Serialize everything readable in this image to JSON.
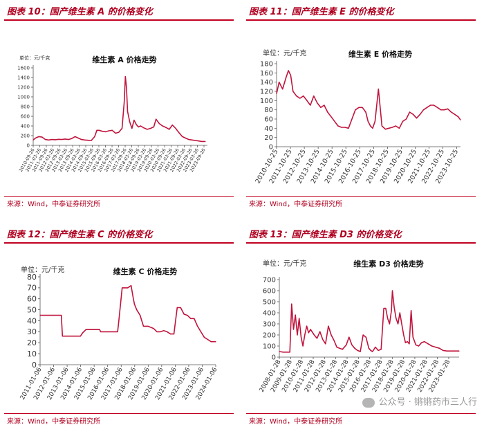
{
  "panels": [
    {
      "title": "图表 10：国产维生素 A 的价格变化",
      "source": "来源：Wind，中泰证券研究所"
    },
    {
      "title": "图表 11：国产维生素 E 的价格变化",
      "source": "来源：Wind，中泰证券研究所"
    },
    {
      "title": "图表 12：国产维生素 C 的价格变化",
      "source": "来源：Wind，中泰证券研究所"
    },
    {
      "title": "图表 13：国产维生素 D3 的价格变化",
      "source": "来源：Wind，中泰证券研究所"
    }
  ],
  "watermark": "公众号 · 锵锵药市三人行",
  "colors": {
    "line": "#c0143c",
    "accent": "#c00020"
  },
  "chart_data": [
    {
      "type": "line",
      "title": "维生素 A 价格走势",
      "unit_label": "单位：元/千克",
      "ylim": [
        0,
        1600
      ],
      "yticks": [
        0,
        200,
        400,
        600,
        800,
        1000,
        1200,
        1400,
        1600
      ],
      "xlim": [
        "2010-09-26",
        "2023-12-31"
      ],
      "xticks": [
        "2010-09-26",
        "2011-03-26",
        "2011-09-26",
        "2012-03-26",
        "2012-09-26",
        "2013-03-26",
        "2013-09-26",
        "2014-03-26",
        "2014-09-26",
        "2015-03-26",
        "2015-09-26",
        "2016-03-26",
        "2016-09-26",
        "2017-03-26",
        "2017-09-26",
        "2018-03-26",
        "2018-09-26",
        "2019-03-26",
        "2019-09-26",
        "2020-03-26",
        "2020-09-26",
        "2021-03-26",
        "2021-09-26",
        "2022-03-26",
        "2022-09-26",
        "2023-03-26",
        "2023-09-26"
      ],
      "grid": false,
      "series": [
        {
          "x": [
            "2010-09-26",
            "2010-12-01",
            "2011-03-01",
            "2011-06-01",
            "2011-09-01",
            "2011-12-01",
            "2012-03-01",
            "2012-06-01",
            "2012-09-01",
            "2012-12-01",
            "2013-03-01",
            "2013-06-01",
            "2013-09-01",
            "2013-12-01",
            "2014-03-01",
            "2014-06-01",
            "2014-09-01",
            "2014-12-01",
            "2015-03-01",
            "2015-06-01",
            "2015-08-01",
            "2015-10-01",
            "2016-01-01",
            "2016-04-01",
            "2016-07-01",
            "2016-10-01",
            "2017-01-01",
            "2017-04-01",
            "2017-07-01",
            "2017-09-01",
            "2017-10-01",
            "2017-11-01",
            "2017-12-01",
            "2018-02-01",
            "2018-04-01",
            "2018-06-01",
            "2018-08-01",
            "2018-10-01",
            "2018-12-01",
            "2019-03-01",
            "2019-06-01",
            "2019-09-01",
            "2019-12-01",
            "2020-02-01",
            "2020-05-01",
            "2020-08-01",
            "2020-11-01",
            "2021-02-01",
            "2021-05-01",
            "2021-08-01",
            "2021-11-01",
            "2022-02-01",
            "2022-05-01",
            "2022-08-01",
            "2022-11-01",
            "2023-02-01",
            "2023-05-01",
            "2023-08-01",
            "2023-11-01"
          ],
          "y": [
            110,
            150,
            180,
            170,
            120,
            110,
            120,
            115,
            125,
            120,
            130,
            120,
            140,
            180,
            150,
            120,
            110,
            105,
            100,
            180,
            310,
            310,
            290,
            280,
            300,
            310,
            250,
            270,
            350,
            900,
            1420,
            1200,
            700,
            480,
            350,
            520,
            430,
            380,
            400,
            360,
            330,
            350,
            380,
            540,
            450,
            400,
            370,
            330,
            420,
            350,
            260,
            180,
            150,
            120,
            110,
            100,
            90,
            80,
            80
          ]
        }
      ]
    },
    {
      "type": "line",
      "title": "维生素 E 价格走势",
      "unit_label": "单位：元/千克",
      "ylim": [
        0,
        180
      ],
      "yticks": [
        0,
        20,
        40,
        60,
        80,
        100,
        120,
        140,
        160,
        180
      ],
      "xlim": [
        "2010-10-25",
        "2024-01-31"
      ],
      "xticks": [
        "2010-10-25",
        "2011-10-25",
        "2012-10-25",
        "2013-10-25",
        "2014-10-25",
        "2015-10-25",
        "2016-10-25",
        "2017-10-25",
        "2018-10-25",
        "2019-10-25",
        "2020-10-25",
        "2021-10-25",
        "2022-10-25",
        "2023-10-25"
      ],
      "grid": false,
      "series": [
        {
          "x": [
            "2010-10-25",
            "2011-01-01",
            "2011-04-01",
            "2011-07-01",
            "2011-09-01",
            "2011-11-01",
            "2012-01-01",
            "2012-04-01",
            "2012-07-01",
            "2012-10-01",
            "2013-01-01",
            "2013-04-01",
            "2013-07-01",
            "2013-10-01",
            "2014-01-01",
            "2014-04-01",
            "2014-07-01",
            "2014-10-01",
            "2015-01-01",
            "2015-04-01",
            "2015-07-01",
            "2015-10-01",
            "2016-01-01",
            "2016-04-01",
            "2016-07-01",
            "2016-10-01",
            "2017-01-01",
            "2017-04-01",
            "2017-06-01",
            "2017-08-01",
            "2017-10-01",
            "2017-12-01",
            "2018-03-01",
            "2018-06-01",
            "2018-09-01",
            "2018-12-01",
            "2019-03-01",
            "2019-06-01",
            "2019-09-01",
            "2019-12-01",
            "2020-03-01",
            "2020-06-01",
            "2020-09-01",
            "2020-12-01",
            "2021-03-01",
            "2021-06-01",
            "2021-09-01",
            "2021-12-01",
            "2022-03-01",
            "2022-06-01",
            "2022-09-01",
            "2022-12-01",
            "2023-03-01",
            "2023-06-01",
            "2023-09-01",
            "2023-12-01",
            "2024-01-31"
          ],
          "y": [
            115,
            140,
            125,
            150,
            165,
            155,
            120,
            110,
            105,
            110,
            100,
            90,
            110,
            95,
            85,
            90,
            75,
            65,
            55,
            45,
            42,
            42,
            40,
            60,
            80,
            85,
            85,
            75,
            55,
            45,
            40,
            55,
            125,
            45,
            38,
            40,
            42,
            45,
            40,
            55,
            60,
            75,
            70,
            62,
            70,
            80,
            85,
            90,
            90,
            85,
            80,
            80,
            82,
            75,
            70,
            65,
            58
          ]
        }
      ]
    },
    {
      "type": "line",
      "title": "维生素 C 价格走势",
      "unit_label": "单位：元/千克",
      "ylim": [
        0,
        80
      ],
      "yticks": [
        0,
        10,
        20,
        30,
        40,
        50,
        60,
        70,
        80
      ],
      "xlim": [
        "2011-01-06",
        "2024-01-06"
      ],
      "xticks": [
        "2011-01-06",
        "2012-01-06",
        "2013-01-06",
        "2014-01-06",
        "2015-01-06",
        "2016-01-06",
        "2017-01-06",
        "2018-01-06",
        "2019-01-06",
        "2020-01-06",
        "2021-01-06",
        "2022-01-06",
        "2023-01-06",
        "2024-01-06"
      ],
      "grid": false,
      "series": [
        {
          "x": [
            "2011-01-06",
            "2012-01-01",
            "2012-08-01",
            "2012-09-01",
            "2013-06-01",
            "2014-01-01",
            "2014-03-01",
            "2014-06-01",
            "2015-06-01",
            "2015-07-01",
            "2016-01-01",
            "2016-07-01",
            "2016-10-01",
            "2016-11-01",
            "2017-02-01",
            "2017-04-01",
            "2017-07-01",
            "2017-10-01",
            "2017-12-01",
            "2018-01-01",
            "2018-03-01",
            "2018-06-01",
            "2018-09-01",
            "2019-01-01",
            "2019-06-01",
            "2019-09-01",
            "2019-12-01",
            "2020-03-01",
            "2020-06-01",
            "2020-09-01",
            "2020-12-01",
            "2021-03-01",
            "2021-06-01",
            "2021-09-01",
            "2021-12-01",
            "2022-03-01",
            "2022-06-01",
            "2022-09-01",
            "2022-12-01",
            "2023-03-01",
            "2023-06-01",
            "2023-09-01",
            "2024-01-06"
          ],
          "y": [
            45,
            45,
            45,
            26,
            26,
            26,
            29,
            32,
            32,
            30,
            30,
            30,
            30,
            39,
            70,
            70,
            70,
            72,
            60,
            55,
            50,
            45,
            35,
            35,
            33,
            30,
            30,
            31,
            30,
            28,
            28,
            52,
            52,
            46,
            45,
            42,
            42,
            35,
            30,
            25,
            23,
            21,
            21
          ]
        }
      ]
    },
    {
      "type": "line",
      "title": "维生素 D3 价格走势",
      "unit_label": "单位：元/千克",
      "ylim": [
        0,
        700
      ],
      "yticks": [
        0,
        100,
        200,
        300,
        400,
        500,
        600,
        700
      ],
      "xlim": [
        "2008-01-28",
        "2023-12-31"
      ],
      "xticks": [
        "2008-01-28",
        "2009-01-28",
        "2010-01-28",
        "2011-01-28",
        "2012-01-28",
        "2013-01-28",
        "2014-01-28",
        "2015-01-28",
        "2016-01-28",
        "2017-01-28",
        "2018-01-28",
        "2019-01-28",
        "2020-01-28",
        "2021-01-28",
        "2022-01-28",
        "2023-01-28"
      ],
      "grid": false,
      "series": [
        {
          "x": [
            "2008-01-28",
            "2008-06-01",
            "2009-01-01",
            "2009-03-01",
            "2009-05-01",
            "2009-07-01",
            "2009-09-01",
            "2009-11-01",
            "2010-01-01",
            "2010-03-01",
            "2010-05-01",
            "2010-07-01",
            "2010-09-01",
            "2010-11-01",
            "2011-03-01",
            "2011-06-01",
            "2011-09-01",
            "2011-12-01",
            "2012-03-01",
            "2012-06-01",
            "2012-09-01",
            "2012-12-01",
            "2013-03-01",
            "2013-06-01",
            "2013-09-01",
            "2014-01-01",
            "2014-04-01",
            "2014-07-01",
            "2014-10-01",
            "2015-01-01",
            "2015-04-01",
            "2015-07-01",
            "2015-10-01",
            "2016-01-01",
            "2016-03-01",
            "2016-05-01",
            "2016-08-01",
            "2016-11-01",
            "2017-02-01",
            "2017-05-01",
            "2017-07-01",
            "2017-09-01",
            "2017-11-01",
            "2018-01-01",
            "2018-02-01",
            "2018-04-01",
            "2018-06-01",
            "2018-08-01",
            "2018-10-01",
            "2018-12-01",
            "2019-02-01",
            "2019-04-01",
            "2019-06-01",
            "2019-08-01",
            "2019-10-01",
            "2019-12-01",
            "2020-03-01",
            "2020-06-01",
            "2020-09-01",
            "2020-12-01",
            "2021-04-01",
            "2021-08-01",
            "2021-12-01",
            "2022-04-01",
            "2022-08-01",
            "2022-12-01",
            "2023-04-01",
            "2023-08-01",
            "2023-12-31"
          ],
          "y": [
            50,
            45,
            45,
            480,
            250,
            380,
            200,
            350,
            180,
            100,
            200,
            280,
            220,
            250,
            200,
            170,
            230,
            160,
            120,
            280,
            200,
            150,
            90,
            80,
            70,
            110,
            180,
            110,
            80,
            60,
            50,
            200,
            180,
            80,
            60,
            50,
            90,
            60,
            70,
            440,
            440,
            350,
            300,
            420,
            600,
            450,
            350,
            300,
            400,
            300,
            200,
            130,
            140,
            120,
            420,
            180,
            110,
            100,
            130,
            140,
            120,
            100,
            90,
            80,
            60,
            55,
            55,
            55,
            55
          ]
        }
      ]
    }
  ]
}
